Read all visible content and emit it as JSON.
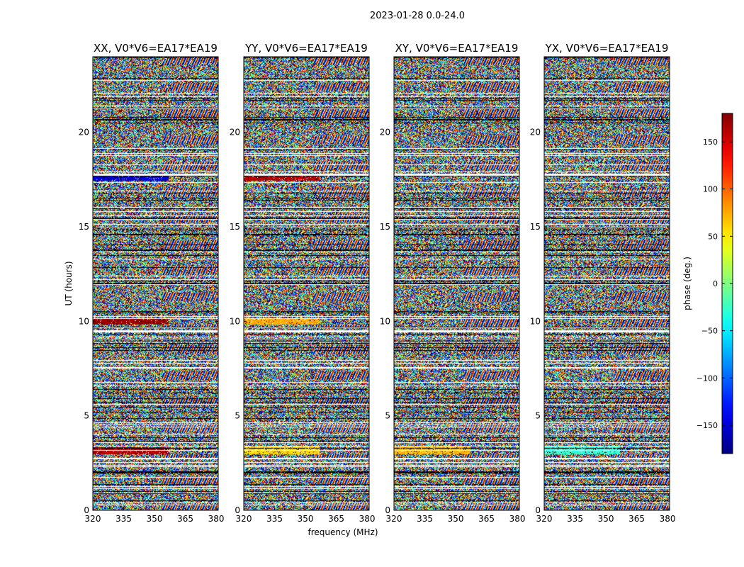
{
  "chart_data": {
    "type": "heatmap",
    "suptitle": "2023-01-28 0.0-24.0",
    "xlabel": "frequency (MHz)",
    "ylabel": "UT (hours)",
    "xlim": [
      320,
      381
    ],
    "ylim": [
      0,
      24
    ],
    "x_ticks": [
      320,
      335,
      350,
      365,
      380
    ],
    "y_ticks": [
      0,
      5,
      10,
      15,
      20
    ],
    "colormap": "jet",
    "colorbar": {
      "label": "phase (deg.)",
      "range": [
        -180,
        180
      ],
      "ticks": [
        -150,
        -100,
        -50,
        0,
        50,
        100,
        150
      ]
    },
    "panels": [
      {
        "title": "XX, V0*V6=EA17*EA19",
        "baseline": "V0*V6=EA17*EA19",
        "polarization": "XX"
      },
      {
        "title": "YY, V0*V6=EA17*EA19",
        "baseline": "V0*V6=EA17*EA19",
        "polarization": "YY"
      },
      {
        "title": "XY, V0*V6=EA17*EA19",
        "baseline": "V0*V6=EA17*EA19",
        "polarization": "XY"
      },
      {
        "title": "YX, V0*V6=EA17*EA19",
        "baseline": "V0*V6=EA17*EA19",
        "polarization": "YX"
      }
    ],
    "flagged_ut_hours": [
      17.4,
      17.8,
      15.0,
      13.3,
      10.0,
      9.5,
      7.6,
      7.8,
      6.8,
      3.4,
      3.2,
      2.7,
      2.4
    ],
    "coherent_bands": [
      {
        "ut_start": 17.45,
        "ut_end": 17.75,
        "phase": -150,
        "panel": 0
      },
      {
        "ut_start": 17.45,
        "ut_end": 17.75,
        "phase": 160,
        "panel": 1
      },
      {
        "ut_start": 9.85,
        "ut_end": 10.15,
        "phase": 170,
        "panel": 0
      },
      {
        "ut_start": 9.85,
        "ut_end": 10.15,
        "phase": 75,
        "panel": 1
      },
      {
        "ut_start": 3.0,
        "ut_end": 3.35,
        "phase": 160,
        "panel": 0
      },
      {
        "ut_start": 3.0,
        "ut_end": 3.4,
        "phase": 60,
        "panel": 1
      },
      {
        "ut_start": 3.0,
        "ut_end": 3.4,
        "phase": 70,
        "panel": 2
      },
      {
        "ut_start": 3.0,
        "ut_end": 3.4,
        "phase": -30,
        "panel": 3
      }
    ]
  }
}
